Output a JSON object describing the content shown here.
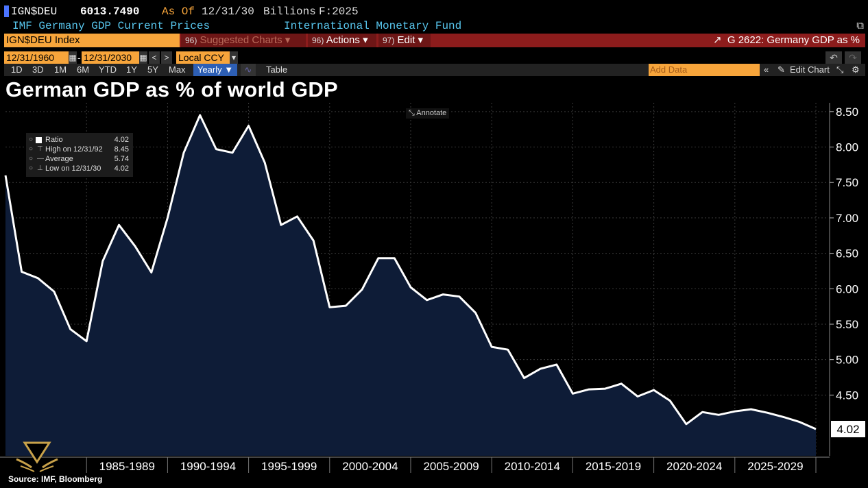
{
  "header": {
    "ticker": "IGN$DEU",
    "last_value": "6013.7490",
    "as_of_label": "As Of",
    "as_of_date": "12/31/30",
    "units": "Billions",
    "forecast": "F:2025",
    "description": "IMF Germany GDP Current Prices",
    "source_org": "International Monetary Fund"
  },
  "toolbar": {
    "security": "IGN$DEU Index",
    "suggested_charts": "Suggested Charts",
    "suggested_num": "96)",
    "actions": "Actions",
    "actions_num": "96)",
    "edit": "Edit",
    "edit_num": "97)",
    "chart_ref": "G 2622: Germany GDP as %"
  },
  "range": {
    "start": "12/31/1960",
    "end": "12/31/2030",
    "currency": "Local CCY"
  },
  "periods": [
    "1D",
    "3D",
    "1M",
    "6M",
    "YTD",
    "1Y",
    "5Y",
    "Max"
  ],
  "frequency": "Yearly",
  "table_label": "Table",
  "add_data_placeholder": "Add Data",
  "edit_chart_label": "Edit Chart",
  "title": "German GDP as % of world GDP",
  "annotate_label": "Annotate",
  "legend": {
    "rows": [
      {
        "label": "Ratio",
        "value": "4.02"
      },
      {
        "label": "High on 12/31/92",
        "value": "8.45"
      },
      {
        "label": "Average",
        "value": "5.74"
      },
      {
        "label": "Low on 12/31/30",
        "value": "4.02"
      }
    ]
  },
  "last_price_label": "4.02",
  "source_text": "Source: IMF, Bloomberg",
  "colors": {
    "background": "#000000",
    "area_fill": "#0e1c37",
    "line": "#ffffff",
    "accent_orange": "#f7a53b",
    "toolbar_red": "#8c1c1c",
    "text_cyan": "#59c8f0"
  },
  "chart_data": {
    "type": "area",
    "title": "German GDP as % of world GDP",
    "xlabel": "",
    "ylabel": "",
    "ylim": [
      4.0,
      8.6
    ],
    "yticks": [
      "4.50",
      "5.00",
      "5.50",
      "6.00",
      "6.50",
      "7.00",
      "7.50",
      "8.00",
      "8.50"
    ],
    "ytick_values": [
      4.5,
      5.0,
      5.5,
      6.0,
      6.5,
      7.0,
      7.5,
      8.0,
      8.5
    ],
    "x_categories": [
      "1985-1989",
      "1990-1994",
      "1995-1999",
      "2000-2004",
      "2005-2009",
      "2010-2014",
      "2015-2019",
      "2020-2024",
      "2025-2029"
    ],
    "grid": true,
    "series": [
      {
        "name": "Ratio",
        "x": [
          1980,
          1981,
          1982,
          1983,
          1984,
          1985,
          1986,
          1987,
          1988,
          1989,
          1990,
          1991,
          1992,
          1993,
          1994,
          1995,
          1996,
          1997,
          1998,
          1999,
          2000,
          2001,
          2002,
          2003,
          2004,
          2005,
          2006,
          2007,
          2008,
          2009,
          2010,
          2011,
          2012,
          2013,
          2014,
          2015,
          2016,
          2017,
          2018,
          2019,
          2020,
          2021,
          2022,
          2023,
          2024,
          2025,
          2026,
          2027,
          2028,
          2029,
          2030
        ],
        "y": [
          7.6,
          6.24,
          6.15,
          5.96,
          5.43,
          5.26,
          6.39,
          6.9,
          6.6,
          6.23,
          7.0,
          7.92,
          8.45,
          7.97,
          7.92,
          8.3,
          7.78,
          6.9,
          7.02,
          6.68,
          5.74,
          5.76,
          5.99,
          6.43,
          6.43,
          6.02,
          5.84,
          5.92,
          5.89,
          5.66,
          5.18,
          5.14,
          4.74,
          4.87,
          4.93,
          4.52,
          4.58,
          4.59,
          4.66,
          4.48,
          4.57,
          4.42,
          4.09,
          4.26,
          4.22,
          4.27,
          4.3,
          4.25,
          4.19,
          4.12,
          4.02
        ]
      }
    ]
  }
}
